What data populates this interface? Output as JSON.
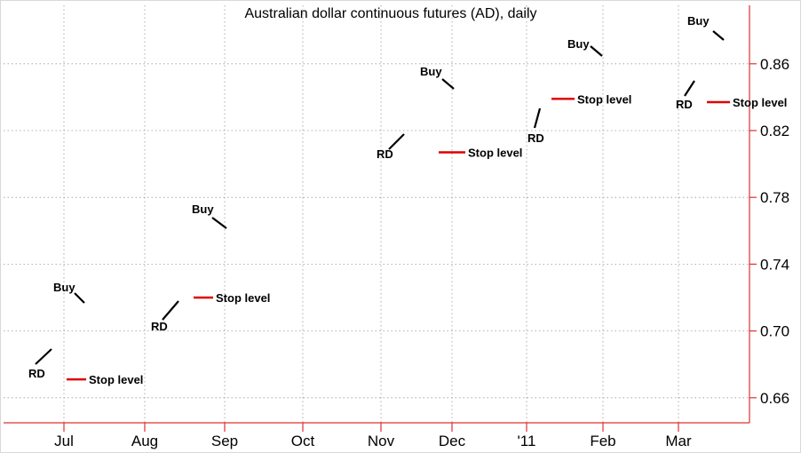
{
  "chart_data": {
    "type": "bar",
    "title": "Australian dollar continuous futures (AD), daily",
    "xlabel": "",
    "ylabel": "",
    "x_tick_labels": [
      "Jul",
      "Aug",
      "Sep",
      "Oct",
      "Nov",
      "Dec",
      "'11",
      "Feb",
      "Mar"
    ],
    "y_ticks": [
      0.66,
      0.7,
      0.74,
      0.78,
      0.82,
      0.86
    ],
    "ylim": [
      0.645,
      0.895
    ],
    "y_axis_side": "right",
    "grid": true,
    "x": [],
    "series": [],
    "annotations": [
      {
        "kind": "rd",
        "text": "RD"
      },
      {
        "kind": "buy",
        "text": "Buy"
      },
      {
        "kind": "stop",
        "text": "Stop level",
        "value": 0.671
      },
      {
        "kind": "rd",
        "text": "RD"
      },
      {
        "kind": "buy",
        "text": "Buy"
      },
      {
        "kind": "stop",
        "text": "Stop level",
        "value": 0.72
      },
      {
        "kind": "rd",
        "text": "RD"
      },
      {
        "kind": "buy",
        "text": "Buy"
      },
      {
        "kind": "stop",
        "text": "Stop level",
        "value": 0.807
      },
      {
        "kind": "rd",
        "text": "RD"
      },
      {
        "kind": "stop",
        "text": "Stop level",
        "value": 0.839
      },
      {
        "kind": "buy",
        "text": "Buy"
      },
      {
        "kind": "rd",
        "text": "RD"
      },
      {
        "kind": "buy",
        "text": "Buy"
      },
      {
        "kind": "stop",
        "text": "Stop level",
        "value": 0.837
      }
    ]
  }
}
